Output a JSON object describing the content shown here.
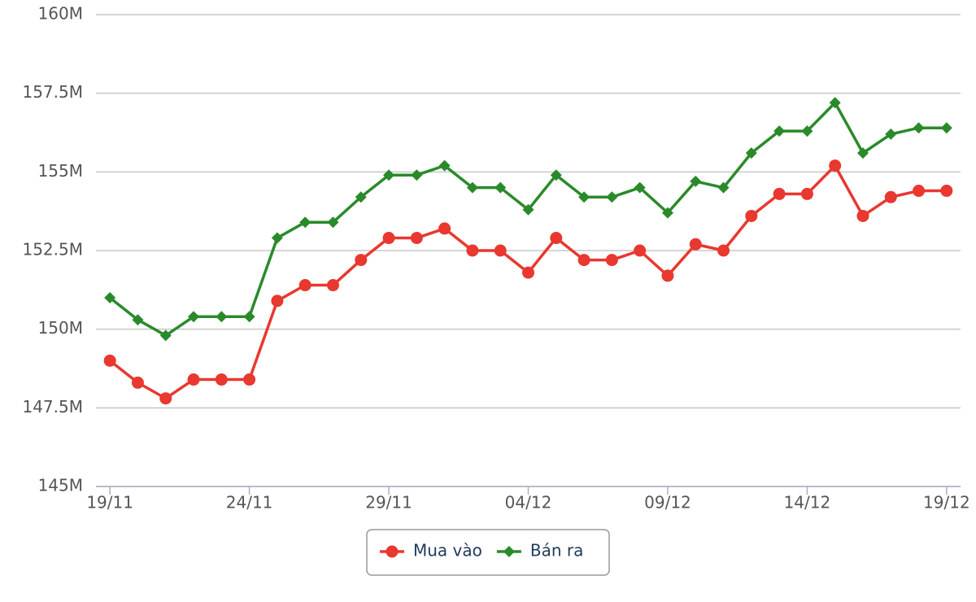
{
  "chart_data": {
    "type": "line",
    "categories": [
      "19/11",
      null,
      null,
      null,
      null,
      "24/11",
      null,
      null,
      null,
      null,
      "29/11",
      null,
      null,
      null,
      null,
      "04/12",
      null,
      null,
      null,
      null,
      "09/12",
      null,
      null,
      null,
      null,
      "14/12",
      null,
      null,
      null,
      null,
      "19/12"
    ],
    "series": [
      {
        "name": "Mua vào",
        "color": "#e8382f",
        "marker": "circle",
        "values": [
          149000000,
          148300000,
          147800000,
          148400000,
          148400000,
          148400000,
          150900000,
          151400000,
          151400000,
          152200000,
          152900000,
          152900000,
          153200000,
          152500000,
          152500000,
          151800000,
          152900000,
          152200000,
          152200000,
          152500000,
          151700000,
          152700000,
          152500000,
          153600000,
          154300000,
          154300000,
          155200000,
          153600000,
          154200000,
          154400000,
          154400000
        ]
      },
      {
        "name": "Bán ra",
        "color": "#2a8a2a",
        "marker": "diamond",
        "values": [
          151000000,
          150300000,
          149800000,
          150400000,
          150400000,
          150400000,
          152900000,
          153400000,
          153400000,
          154200000,
          154900000,
          154900000,
          155200000,
          154500000,
          154500000,
          153800000,
          154900000,
          154200000,
          154200000,
          154500000,
          153700000,
          154700000,
          154500000,
          155600000,
          156300000,
          156300000,
          157200000,
          155600000,
          156200000,
          156400000,
          156400000
        ]
      }
    ],
    "ylim": [
      145000000,
      160000000
    ],
    "yticks": [
      {
        "value": 145000000,
        "label": "145M"
      },
      {
        "value": 147500000,
        "label": "147.5M"
      },
      {
        "value": 150000000,
        "label": "150M"
      },
      {
        "value": 152500000,
        "label": "152.5M"
      },
      {
        "value": 155000000,
        "label": "155M"
      },
      {
        "value": 157500000,
        "label": "157.5M"
      },
      {
        "value": 160000000,
        "label": "160M"
      }
    ],
    "grid": true,
    "legend": "bottom"
  }
}
